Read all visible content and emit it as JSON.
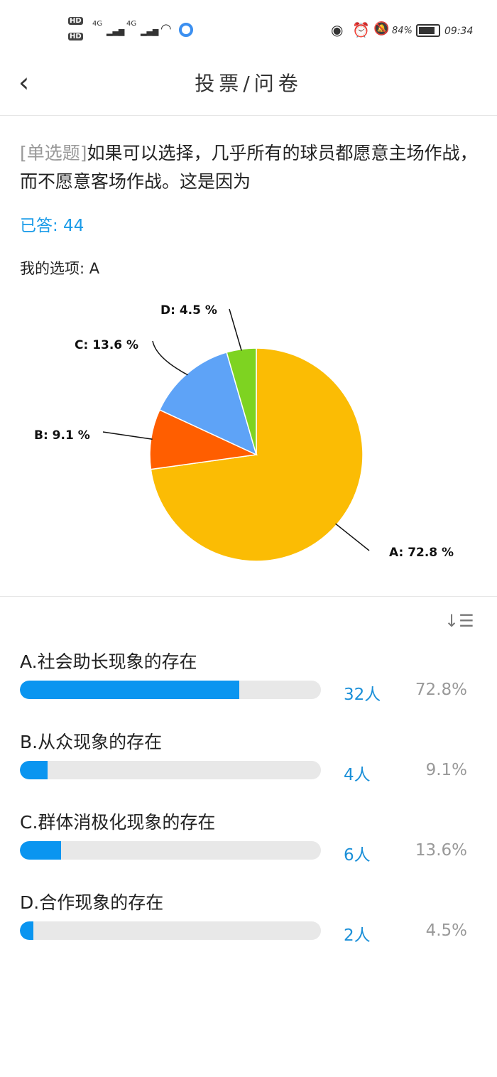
{
  "status_bar": {
    "sim1": "HD",
    "sim2": "HD",
    "network1": "4G",
    "network2": "4G",
    "battery": "84%",
    "time": "09:34",
    "icons": [
      "signal-icon",
      "wifi-icon",
      "eye-icon",
      "alarm-icon",
      "bell-off-icon",
      "battery-icon"
    ]
  },
  "header": {
    "title": "投票/问卷",
    "back_icon": "chevron-left-icon"
  },
  "question": {
    "type_tag": "[单选题]",
    "text": "如果可以选择，几乎所有的球员都愿意主场作战，而不愿意客场作战。这是因为",
    "answered": "已答: 44",
    "my_choice": "我的选项: A"
  },
  "chart_data": {
    "type": "pie",
    "categories": [
      "A",
      "B",
      "C",
      "D"
    ],
    "values": [
      72.8,
      9.1,
      13.6,
      4.5
    ],
    "labels": [
      "A: 72.8 %",
      "B: 9.1 %",
      "C: 13.6 %",
      "D: 4.5 %"
    ],
    "colors": [
      "#fbbc04",
      "#ff5e00",
      "#5ea3f7",
      "#7ed321"
    ]
  },
  "results": {
    "sort_icon": "sort-icon",
    "options": [
      {
        "label": "A.社会助长现象的存在",
        "count": "32人",
        "percent": "72.8%",
        "fill": 72.8
      },
      {
        "label": "B.从众现象的存在",
        "count": "4人",
        "percent": "9.1%",
        "fill": 9.1
      },
      {
        "label": "C.群体消极化现象的存在",
        "count": "6人",
        "percent": "13.6%",
        "fill": 13.6
      },
      {
        "label": "D.合作现象的存在",
        "count": "2人",
        "percent": "4.5%",
        "fill": 4.5
      }
    ]
  }
}
